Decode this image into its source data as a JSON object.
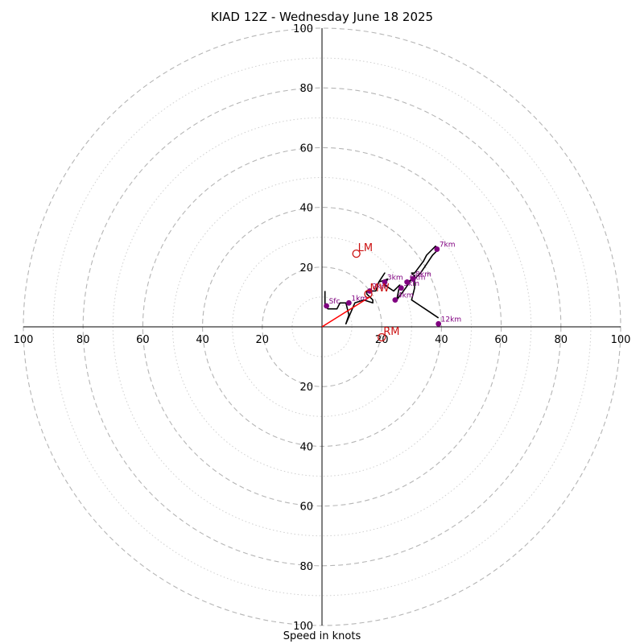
{
  "chart_data": {
    "type": "scatter",
    "title": "KIAD 12Z - Wednesday June 18 2025",
    "xlabel": "Speed in knots",
    "ylabel": "",
    "xlim": [
      -100,
      100
    ],
    "ylim": [
      -100,
      100
    ],
    "grid": true,
    "ring_radii": [
      10,
      20,
      30,
      40,
      50,
      60,
      70,
      80,
      90,
      100
    ],
    "tick_values": [
      20,
      40,
      60,
      80,
      100
    ],
    "hodograph": {
      "color": "#000000",
      "u": [
        1,
        1,
        2,
        5,
        6,
        8,
        9,
        8,
        11,
        14,
        17,
        17,
        15,
        15,
        18,
        19,
        21,
        19,
        22,
        21,
        24,
        26,
        25,
        28,
        30,
        29,
        31,
        30,
        31,
        34,
        35,
        37,
        38,
        39,
        38,
        37,
        35,
        33,
        31,
        31,
        30,
        33,
        36,
        39
      ],
      "v": [
        12,
        7,
        6,
        6,
        8,
        8,
        4,
        1,
        8,
        9,
        8,
        9,
        11,
        12,
        12,
        15,
        18,
        15,
        16,
        14,
        12,
        14,
        9,
        13,
        16,
        15,
        17,
        18,
        18,
        22,
        24,
        26,
        27,
        26,
        25,
        24,
        21,
        18,
        16,
        13,
        9,
        7,
        5,
        3
      ]
    },
    "height_markers": {
      "color": "#800080",
      "points": [
        {
          "label": "Sfc",
          "u": 1.5,
          "v": 7
        },
        {
          "label": "1km",
          "u": 9,
          "v": 8
        },
        {
          "label": "2km",
          "u": 16,
          "v": 12
        },
        {
          "label": "3km",
          "u": 21,
          "v": 15
        },
        {
          "label": "4km",
          "u": 24.5,
          "v": 9
        },
        {
          "label": "5km",
          "u": 26.5,
          "v": 13
        },
        {
          "label": "6km",
          "u": 28.5,
          "v": 15
        },
        {
          "label": "7km",
          "u": 38.5,
          "v": 26
        },
        {
          "label": "8km",
          "u": 30.5,
          "v": 16
        },
        {
          "label": "12km",
          "u": 39,
          "v": 1
        }
      ]
    },
    "storm_motion": {
      "color": "#cc1111",
      "points": [
        {
          "label": "LM",
          "u": 11.5,
          "v": 24.5
        },
        {
          "label": "RM",
          "u": 20,
          "v": -3.5
        },
        {
          "label": "MW",
          "u": 15.5,
          "v": 11
        }
      ],
      "vector_to": {
        "u": 16,
        "v": 10
      }
    }
  }
}
